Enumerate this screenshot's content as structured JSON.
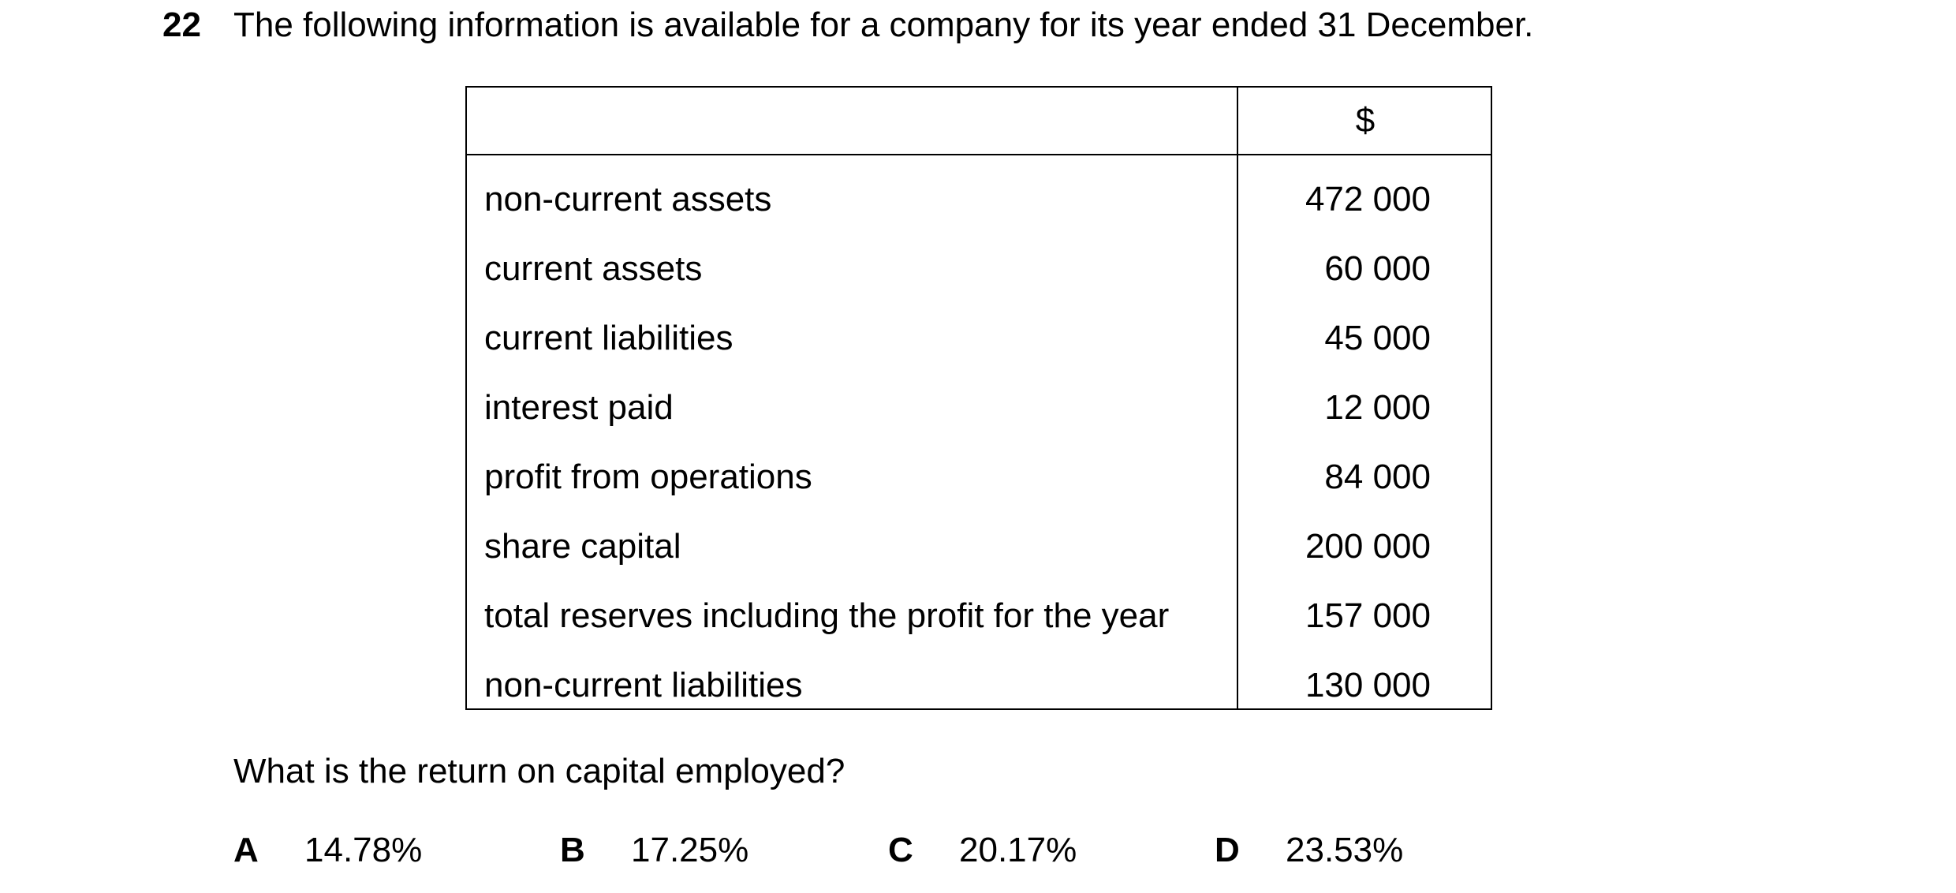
{
  "question": {
    "number": "22",
    "text": "The following information is available for a company for its year ended 31 December."
  },
  "table": {
    "currency_header": "$",
    "rows": [
      {
        "label": "non-current assets",
        "value": "472 000"
      },
      {
        "label": "current assets",
        "value": "60 000"
      },
      {
        "label": "current liabilities",
        "value": "45 000"
      },
      {
        "label": "interest paid",
        "value": "12 000"
      },
      {
        "label": "profit from operations",
        "value": "84 000"
      },
      {
        "label": "share capital",
        "value": "200 000"
      },
      {
        "label": "total reserves including the profit for the year",
        "value": "157 000"
      },
      {
        "label": "non-current liabilities",
        "value": "130 000"
      }
    ]
  },
  "prompt": "What is the return on capital employed?",
  "options": [
    {
      "letter": "A",
      "value": "14.78%"
    },
    {
      "letter": "B",
      "value": "17.25%"
    },
    {
      "letter": "C",
      "value": "20.17%"
    },
    {
      "letter": "D",
      "value": "23.53%"
    }
  ]
}
